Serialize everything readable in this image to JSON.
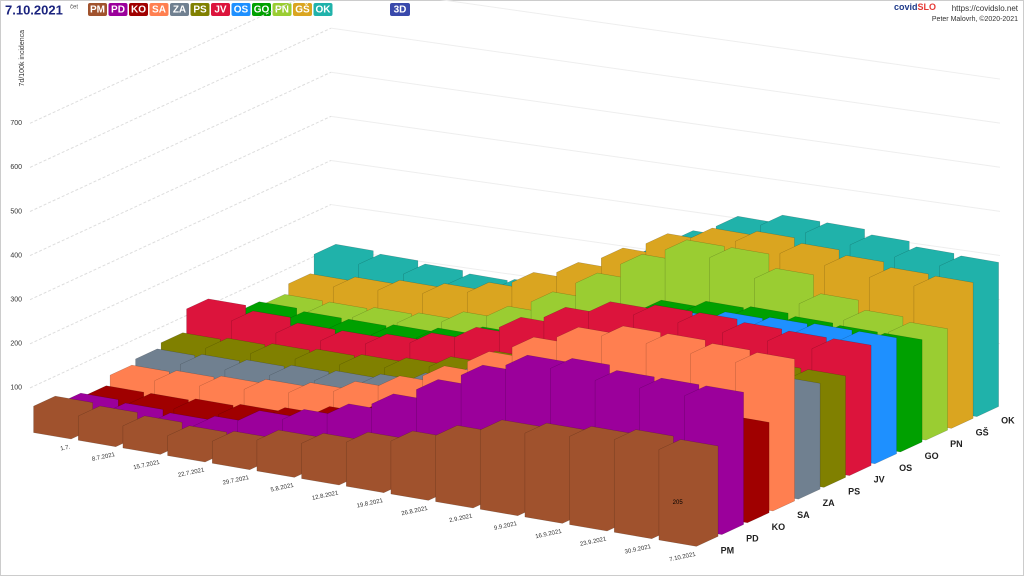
{
  "header": {
    "url": "https://covidslo.net",
    "brand": [
      "covid",
      "SLO"
    ],
    "credit": "Peter Malovrh, ©2020-2021",
    "mode_button": "3D"
  },
  "chart_data": {
    "type": "bar3d",
    "title": "7.10.2021",
    "subtitle": "čet",
    "y_label": "7d/100k incidenca",
    "categories": [
      "1.7.",
      "8.7.2021",
      "15.7.2021",
      "22.7.2021",
      "29.7.2021",
      "5.8.2021",
      "12.8.2021",
      "19.8.2021",
      "26.8.2021",
      "2.9.2021",
      "9.9.2021",
      "16.9.2021",
      "23.9.2021",
      "30.9.2021",
      "7.10.2021"
    ],
    "ylim": [
      0,
      800
    ],
    "yticks": [
      100,
      200,
      300,
      400,
      500,
      600,
      700
    ],
    "grid": true,
    "series": [
      {
        "name": "PM",
        "color": "#a0522d",
        "values": [
          60,
          55,
          50,
          45,
          50,
          70,
          80,
          100,
          120,
          150,
          180,
          190,
          200,
          210,
          205
        ]
      },
      {
        "name": "PD",
        "color": "#9b009b",
        "values": [
          40,
          35,
          30,
          40,
          70,
          90,
          120,
          160,
          210,
          260,
          300,
          310,
          300,
          300,
          300
        ]
      },
      {
        "name": "KO",
        "color": "#a00000",
        "values": [
          30,
          30,
          35,
          40,
          50,
          70,
          90,
          120,
          150,
          180,
          200,
          210,
          210,
          205,
          205
        ]
      },
      {
        "name": "SA",
        "color": "#ff7f50",
        "values": [
          50,
          55,
          60,
          70,
          80,
          100,
          130,
          170,
          220,
          270,
          310,
          330,
          330,
          325,
          322
        ]
      },
      {
        "name": "ZA",
        "color": "#708090",
        "values": [
          60,
          65,
          70,
          75,
          80,
          90,
          110,
          140,
          170,
          200,
          220,
          235,
          240,
          240,
          240
        ]
      },
      {
        "name": "PS",
        "color": "#808000",
        "values": [
          70,
          75,
          80,
          85,
          90,
          100,
          120,
          150,
          180,
          210,
          225,
          230,
          230,
          230,
          230
        ]
      },
      {
        "name": "JV",
        "color": "#dc143c",
        "values": [
          120,
          110,
          100,
          100,
          110,
          130,
          160,
          200,
          240,
          270,
          280,
          280,
          275,
          273,
          273
        ]
      },
      {
        "name": "OS",
        "color": "#1e90ff",
        "values": [
          60,
          55,
          50,
          55,
          60,
          80,
          100,
          130,
          170,
          210,
          240,
          255,
          260,
          263,
          263
        ]
      },
      {
        "name": "GO",
        "color": "#00a000",
        "values": [
          60,
          55,
          55,
          60,
          70,
          90,
          120,
          150,
          190,
          220,
          235,
          240,
          235,
          232,
          232
        ]
      },
      {
        "name": "PN",
        "color": "#9acd32",
        "values": [
          50,
          50,
          55,
          60,
          80,
          110,
          160,
          220,
          280,
          330,
          330,
          300,
          260,
          240,
          230
        ]
      },
      {
        "name": "GŠ",
        "color": "#daa520",
        "values": [
          70,
          80,
          90,
          100,
          120,
          160,
          200,
          250,
          300,
          330,
          340,
          330,
          320,
          310,
          308
        ]
      },
      {
        "name": "OK",
        "color": "#20b2aa",
        "values": [
          110,
          105,
          100,
          95,
          100,
          120,
          160,
          220,
          280,
          330,
          350,
          350,
          340,
          330,
          327
        ]
      }
    ]
  }
}
